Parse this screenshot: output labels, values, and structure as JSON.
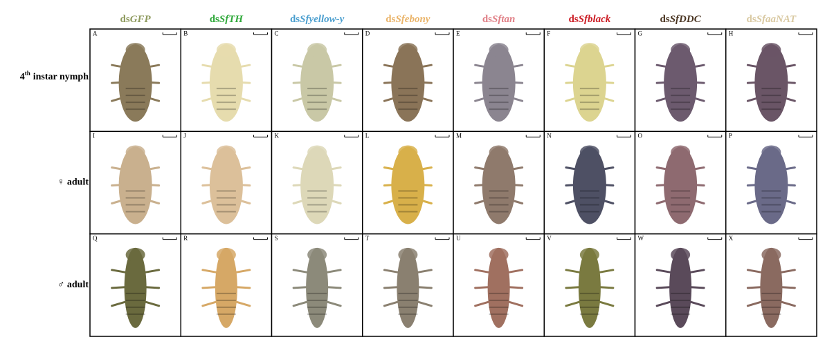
{
  "columns": [
    {
      "prefix": "ds",
      "gene": "GFP",
      "color": "#8e9a5e"
    },
    {
      "prefix": "ds",
      "gene": "SfTH",
      "color": "#2fa83a"
    },
    {
      "prefix": "ds",
      "gene": "Sfyellow-y",
      "color": "#4c9fcf"
    },
    {
      "prefix": "ds",
      "gene": "Sfebony",
      "color": "#eab46a"
    },
    {
      "prefix": "ds",
      "gene": "Sftan",
      "color": "#e07f86"
    },
    {
      "prefix": "ds",
      "gene": "Sfblack",
      "color": "#cc1e26"
    },
    {
      "prefix": "ds",
      "gene": "SfDDC",
      "color": "#4a3522"
    },
    {
      "prefix": "ds",
      "gene": "SfaaNAT",
      "color": "#d9c9a2"
    }
  ],
  "rows": [
    {
      "label": {
        "number": "4",
        "suffix": "th",
        "text": "instar nymph"
      },
      "panels": [
        "A",
        "B",
        "C",
        "D",
        "E",
        "F",
        "G",
        "H"
      ]
    },
    {
      "label": "♀ adult",
      "panels": [
        "I",
        "J",
        "K",
        "L",
        "M",
        "N",
        "O",
        "P"
      ]
    },
    {
      "label": "♂ adult",
      "panels": [
        "Q",
        "R",
        "S",
        "T",
        "U",
        "V",
        "W",
        "X"
      ]
    }
  ]
}
